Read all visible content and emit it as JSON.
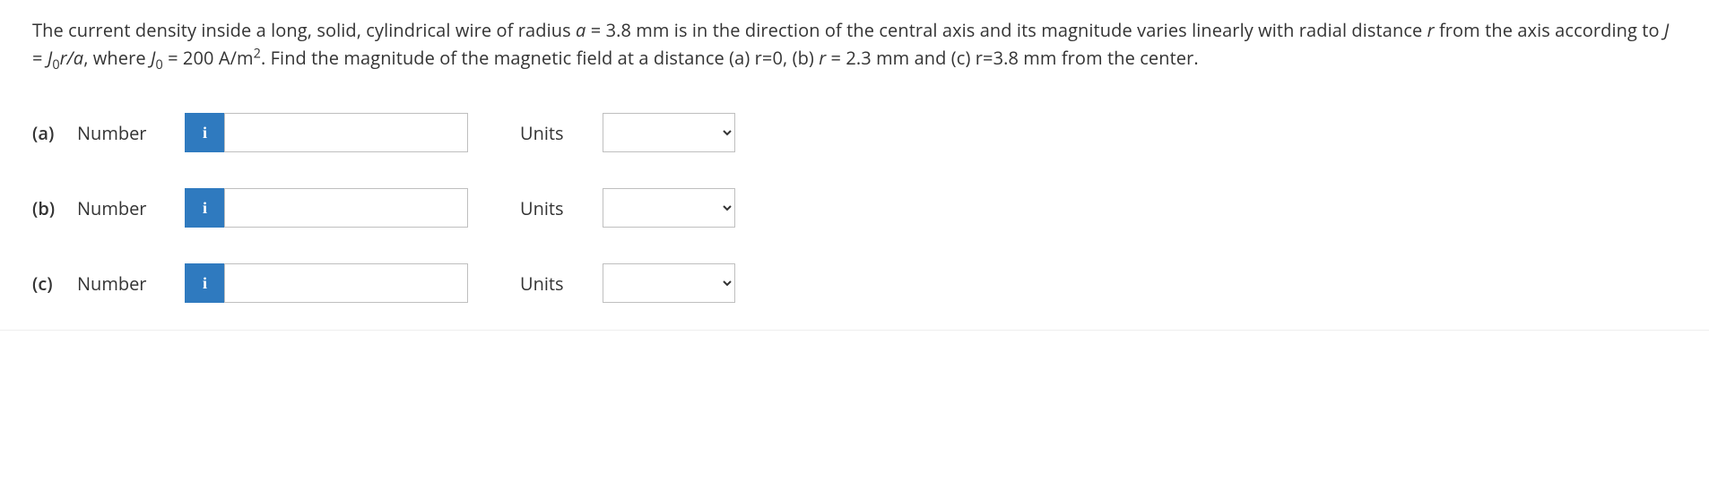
{
  "question": {
    "line1_pre": "The current density inside a long, solid, cylindrical wire of radius ",
    "a_var": "a",
    "a_val": " = 3.8 mm is in the direction of the central axis and its magnitude",
    "line2_pre": "varies linearly with radial distance ",
    "r_var": "r",
    "line2_mid": " from the axis according to ",
    "J_var": "J",
    "eq_txt": " = ",
    "J0_var": "J",
    "sub0": "0",
    "J0_after": "r/a",
    "where_txt": ", where ",
    "J0_var2": "J",
    "sub0_2": "0",
    "J0_val": " = 200 A/m",
    "sup2": "2",
    "line2_end": ". Find the magnitude of the magnetic field",
    "line3": "at a distance (a) r=0, (b) ",
    "r_var2": "r",
    "rb_val": " = 2.3 mm and (c) r=3.8 mm from the center."
  },
  "labels": {
    "number": "Number",
    "units": "Units"
  },
  "parts": {
    "a": {
      "label": "(a)",
      "value": "",
      "units": ""
    },
    "b": {
      "label": "(b)",
      "value": "",
      "units": ""
    },
    "c": {
      "label": "(c)",
      "value": "",
      "units": ""
    }
  },
  "info_glyph": "i",
  "colors": {
    "info_bg": "#2f7abf",
    "border": "#bfbfbf",
    "text": "#333333"
  }
}
